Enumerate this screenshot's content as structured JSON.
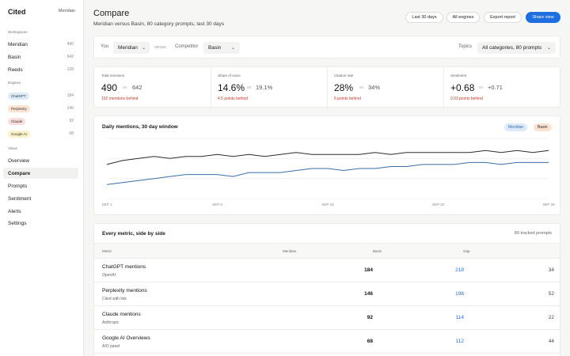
{
  "app": {
    "brand": "Cited",
    "workspace": "Meridian"
  },
  "sidebar": {
    "workspaces_heading": "Workspaces",
    "workspaces": [
      {
        "label": "Meridian",
        "count": "490"
      },
      {
        "label": "Basin",
        "count": "642"
      },
      {
        "label": "Reeds",
        "count": "128"
      }
    ],
    "engines_heading": "Engines",
    "engines": [
      {
        "label": "ChatGPT",
        "count": "184",
        "color": "#dcebfa"
      },
      {
        "label": "Perplexity",
        "count": "146",
        "color": "#fbe3d2"
      },
      {
        "label": "Claude",
        "count": "92",
        "color": "#f8dedd"
      },
      {
        "label": "Google AI",
        "count": "68",
        "color": "#fbf1c8"
      }
    ],
    "views_heading": "Views",
    "views": [
      {
        "label": "Overview"
      },
      {
        "label": "Compare"
      },
      {
        "label": "Prompts"
      },
      {
        "label": "Sentiment"
      },
      {
        "label": "Alerts"
      },
      {
        "label": "Settings"
      }
    ]
  },
  "header": {
    "title": "Compare",
    "subtitle": "Meridian versus Basin, 80 category prompts, last 30 days",
    "buttons": {
      "range": "Last 30 days",
      "engines": "All engines",
      "export": "Export report",
      "share": "Share view"
    }
  },
  "filters": {
    "you_label": "You",
    "you_value": "Meridian",
    "versus": "versus",
    "competitor_label": "Competitor",
    "competitor_value": "Basin",
    "topics_label": "Topics",
    "topics_value": "All categories, 80 prompts"
  },
  "stats": [
    {
      "label": "Total mentions",
      "value": "490",
      "vs": "vs",
      "comp": "642",
      "note": "152 mentions behind"
    },
    {
      "label": "Share of voice",
      "value": "14.6%",
      "vs": "vs",
      "comp": "19.1%",
      "note": "4.5 points behind"
    },
    {
      "label": "Citation rate",
      "value": "28%",
      "vs": "vs",
      "comp": "34%",
      "note": "6 points behind"
    },
    {
      "label": "Sentiment",
      "value": "+0.68",
      "vs": "vs",
      "comp": "+0.71",
      "note": "0.03 points behind"
    }
  ],
  "chart": {
    "title": "Daily mentions, 30 day window",
    "legend": [
      {
        "name": "Meridian",
        "color": "#3a6ea5",
        "bg": "#dcebfa"
      },
      {
        "name": "Basin",
        "color": "#2b2b2b",
        "bg": "#fbe3d2"
      }
    ]
  },
  "chart_data": {
    "type": "line",
    "x": [
      1,
      2,
      3,
      4,
      5,
      6,
      7,
      8,
      9,
      10,
      11,
      12,
      13,
      14,
      15,
      16,
      17,
      18,
      19,
      20,
      21,
      22,
      23,
      24,
      25,
      26,
      27,
      28,
      29
    ],
    "tick_labels": [
      "SEP 1",
      "SEP 8",
      "SEP 15",
      "SEP 22",
      "SEP 29"
    ],
    "tick_positions": [
      1,
      8,
      15,
      22,
      29
    ],
    "series": [
      {
        "name": "Basin",
        "values": [
          17,
          19,
          20,
          21,
          20,
          21,
          21,
          22,
          21,
          22,
          21,
          22,
          23,
          22,
          22,
          22,
          22,
          23,
          22,
          23,
          23,
          23,
          23,
          23,
          24,
          23,
          24,
          23,
          24
        ]
      },
      {
        "name": "Meridian",
        "values": [
          7,
          8,
          9,
          10,
          11,
          12,
          12,
          12,
          11,
          13,
          13,
          13,
          14,
          15,
          15,
          14,
          15,
          15,
          16,
          16,
          17,
          17,
          17,
          18,
          18,
          17,
          18,
          18,
          18
        ]
      }
    ],
    "ylim": [
      0,
      30
    ],
    "grid": true,
    "legend": "top-right"
  },
  "table": {
    "title": "Every metric, side by side",
    "count": "80 tracked prompts",
    "headers": [
      "Metric",
      "Meridian",
      "Basin",
      "Gap"
    ],
    "rows": [
      {
        "name": "ChatGPT mentions",
        "sub": "OpenAI",
        "meridian": "184",
        "basin": "218",
        "gap": "34"
      },
      {
        "name": "Perplexity mentions",
        "sub": "Cited with link",
        "meridian": "146",
        "basin": "198",
        "gap": "52"
      },
      {
        "name": "Claude mentions",
        "sub": "Anthropic",
        "meridian": "92",
        "basin": "114",
        "gap": "22"
      },
      {
        "name": "Google AI Overviews",
        "sub": "AIO panel",
        "meridian": "68",
        "basin": "112",
        "gap": "44"
      }
    ]
  }
}
